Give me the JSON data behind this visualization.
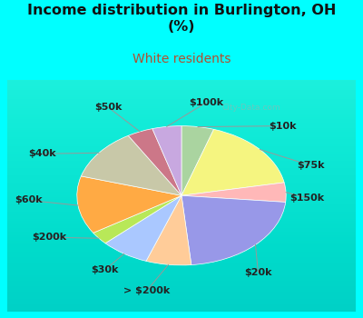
{
  "title": "Income distribution in Burlington, OH\n(%)",
  "subtitle": "White residents",
  "title_color": "#111111",
  "subtitle_color": "#b05030",
  "background_color": "#00ffff",
  "chart_bg_top": "#e8f5f0",
  "chart_bg_bottom": "#c8e8d8",
  "labels": [
    "$10k",
    "$75k",
    "$150k",
    "$20k",
    "> $200k",
    "$30k",
    "$200k",
    "$60k",
    "$40k",
    "$50k",
    "$100k"
  ],
  "values": [
    5.0,
    17.0,
    4.5,
    22.0,
    7.0,
    7.5,
    3.0,
    13.5,
    12.0,
    4.0,
    4.5
  ],
  "colors": [
    "#aad4a0",
    "#f5f580",
    "#ffb8b8",
    "#9898e8",
    "#ffcc99",
    "#aac8ff",
    "#b8e858",
    "#ffaa44",
    "#c8c8a8",
    "#cc7788",
    "#c8a8e0"
  ],
  "label_fontsize": 8.0,
  "watermark": "City-Data.com"
}
